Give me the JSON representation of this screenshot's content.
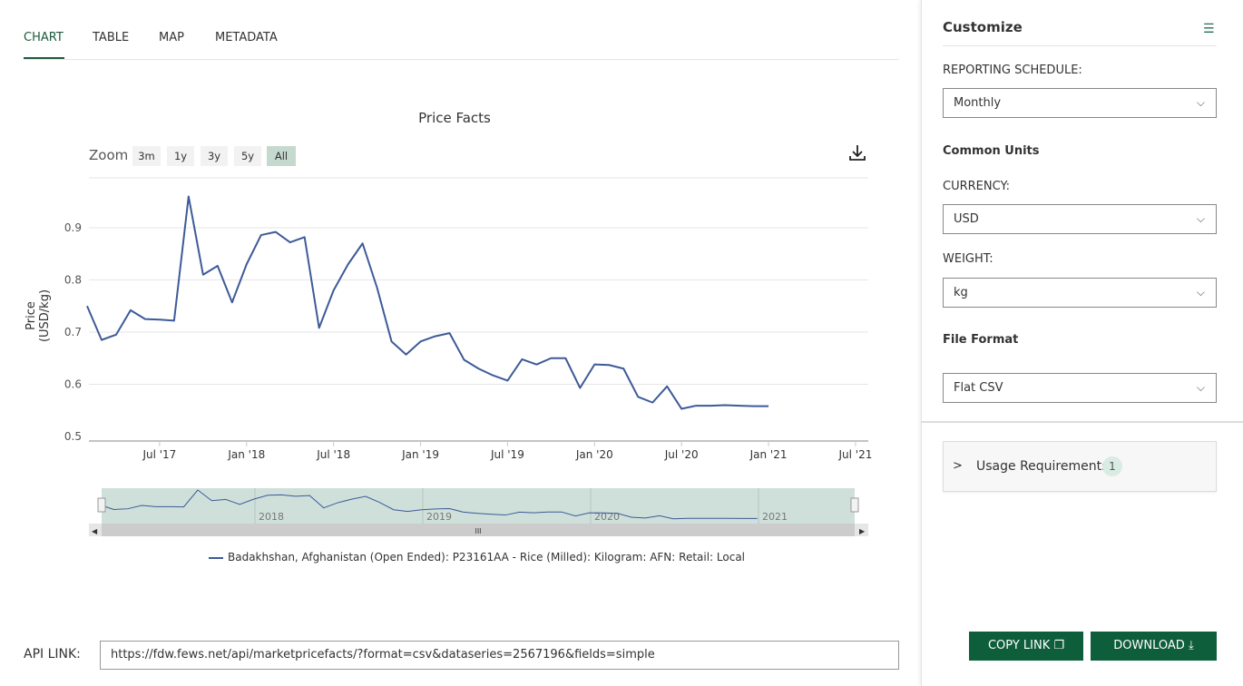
{
  "tabs": [
    {
      "label": "CHART",
      "active": true
    },
    {
      "label": "TABLE"
    },
    {
      "label": "MAP"
    },
    {
      "label": "METADATA"
    }
  ],
  "zoom": {
    "label": "Zoom",
    "buttons": [
      "3m",
      "1y",
      "3y",
      "5y",
      "All"
    ],
    "selected": "All"
  },
  "download_icon": "download-icon",
  "chart_data": {
    "type": "line",
    "title": "Price Facts",
    "ylabel": "Price (USD/kg)",
    "ylim": [
      0.5,
      0.97
    ],
    "yticks": [
      "0.5",
      "0.6",
      "0.7",
      "0.8",
      "0.9"
    ],
    "xticks": [
      "Jul '17",
      "Jan '18",
      "Jul '18",
      "Jan '19",
      "Jul '19",
      "Jan '20",
      "Jul '20",
      "Jan '21",
      "Jul '21"
    ],
    "x_start": "2017-02",
    "x_end": "2021-01",
    "grid": true,
    "legend_position": "bottom",
    "navigator_labels": [
      "2018",
      "2019",
      "2020",
      "2021"
    ],
    "series": [
      {
        "name": "Badakhshan, Afghanistan (Open Ended): P23161AA - Rice (Milled): Kilogram: AFN: Retail: Local",
        "color": "#3d5a98",
        "values": [
          0.75,
          0.685,
          0.695,
          0.742,
          0.725,
          0.724,
          0.722,
          0.96,
          0.81,
          0.827,
          0.757,
          0.83,
          0.886,
          0.892,
          0.872,
          0.882,
          0.708,
          0.78,
          0.83,
          0.87,
          0.785,
          0.682,
          0.657,
          0.682,
          0.692,
          0.698,
          0.647,
          0.63,
          0.617,
          0.607,
          0.648,
          0.638,
          0.65,
          0.65,
          0.593,
          0.638,
          0.637,
          0.63,
          0.576,
          0.565,
          0.596,
          0.553,
          0.559,
          0.559,
          0.56,
          0.559,
          0.558,
          0.558
        ]
      }
    ]
  },
  "api": {
    "label": "API LINK:",
    "url": "https://fdw.fews.net/api/marketpricefacts/?format=csv&dataseries=2567196&fields=simple"
  },
  "panel": {
    "title": "Customize",
    "reporting_label": "REPORTING SCHEDULE:",
    "reporting_value": "Monthly",
    "common_units": "Common Units",
    "currency_label": "CURRENCY:",
    "currency_value": "USD",
    "weight_label": "WEIGHT:",
    "weight_value": "kg",
    "file_format": "File Format",
    "file_format_value": "Flat CSV",
    "usage": "Usage Requirements",
    "usage_count": "1",
    "copy_link": "COPY LINK",
    "download": "DOWNLOAD"
  },
  "colors": {
    "accent": "#0f5e3b",
    "line": "#3d5a98"
  }
}
